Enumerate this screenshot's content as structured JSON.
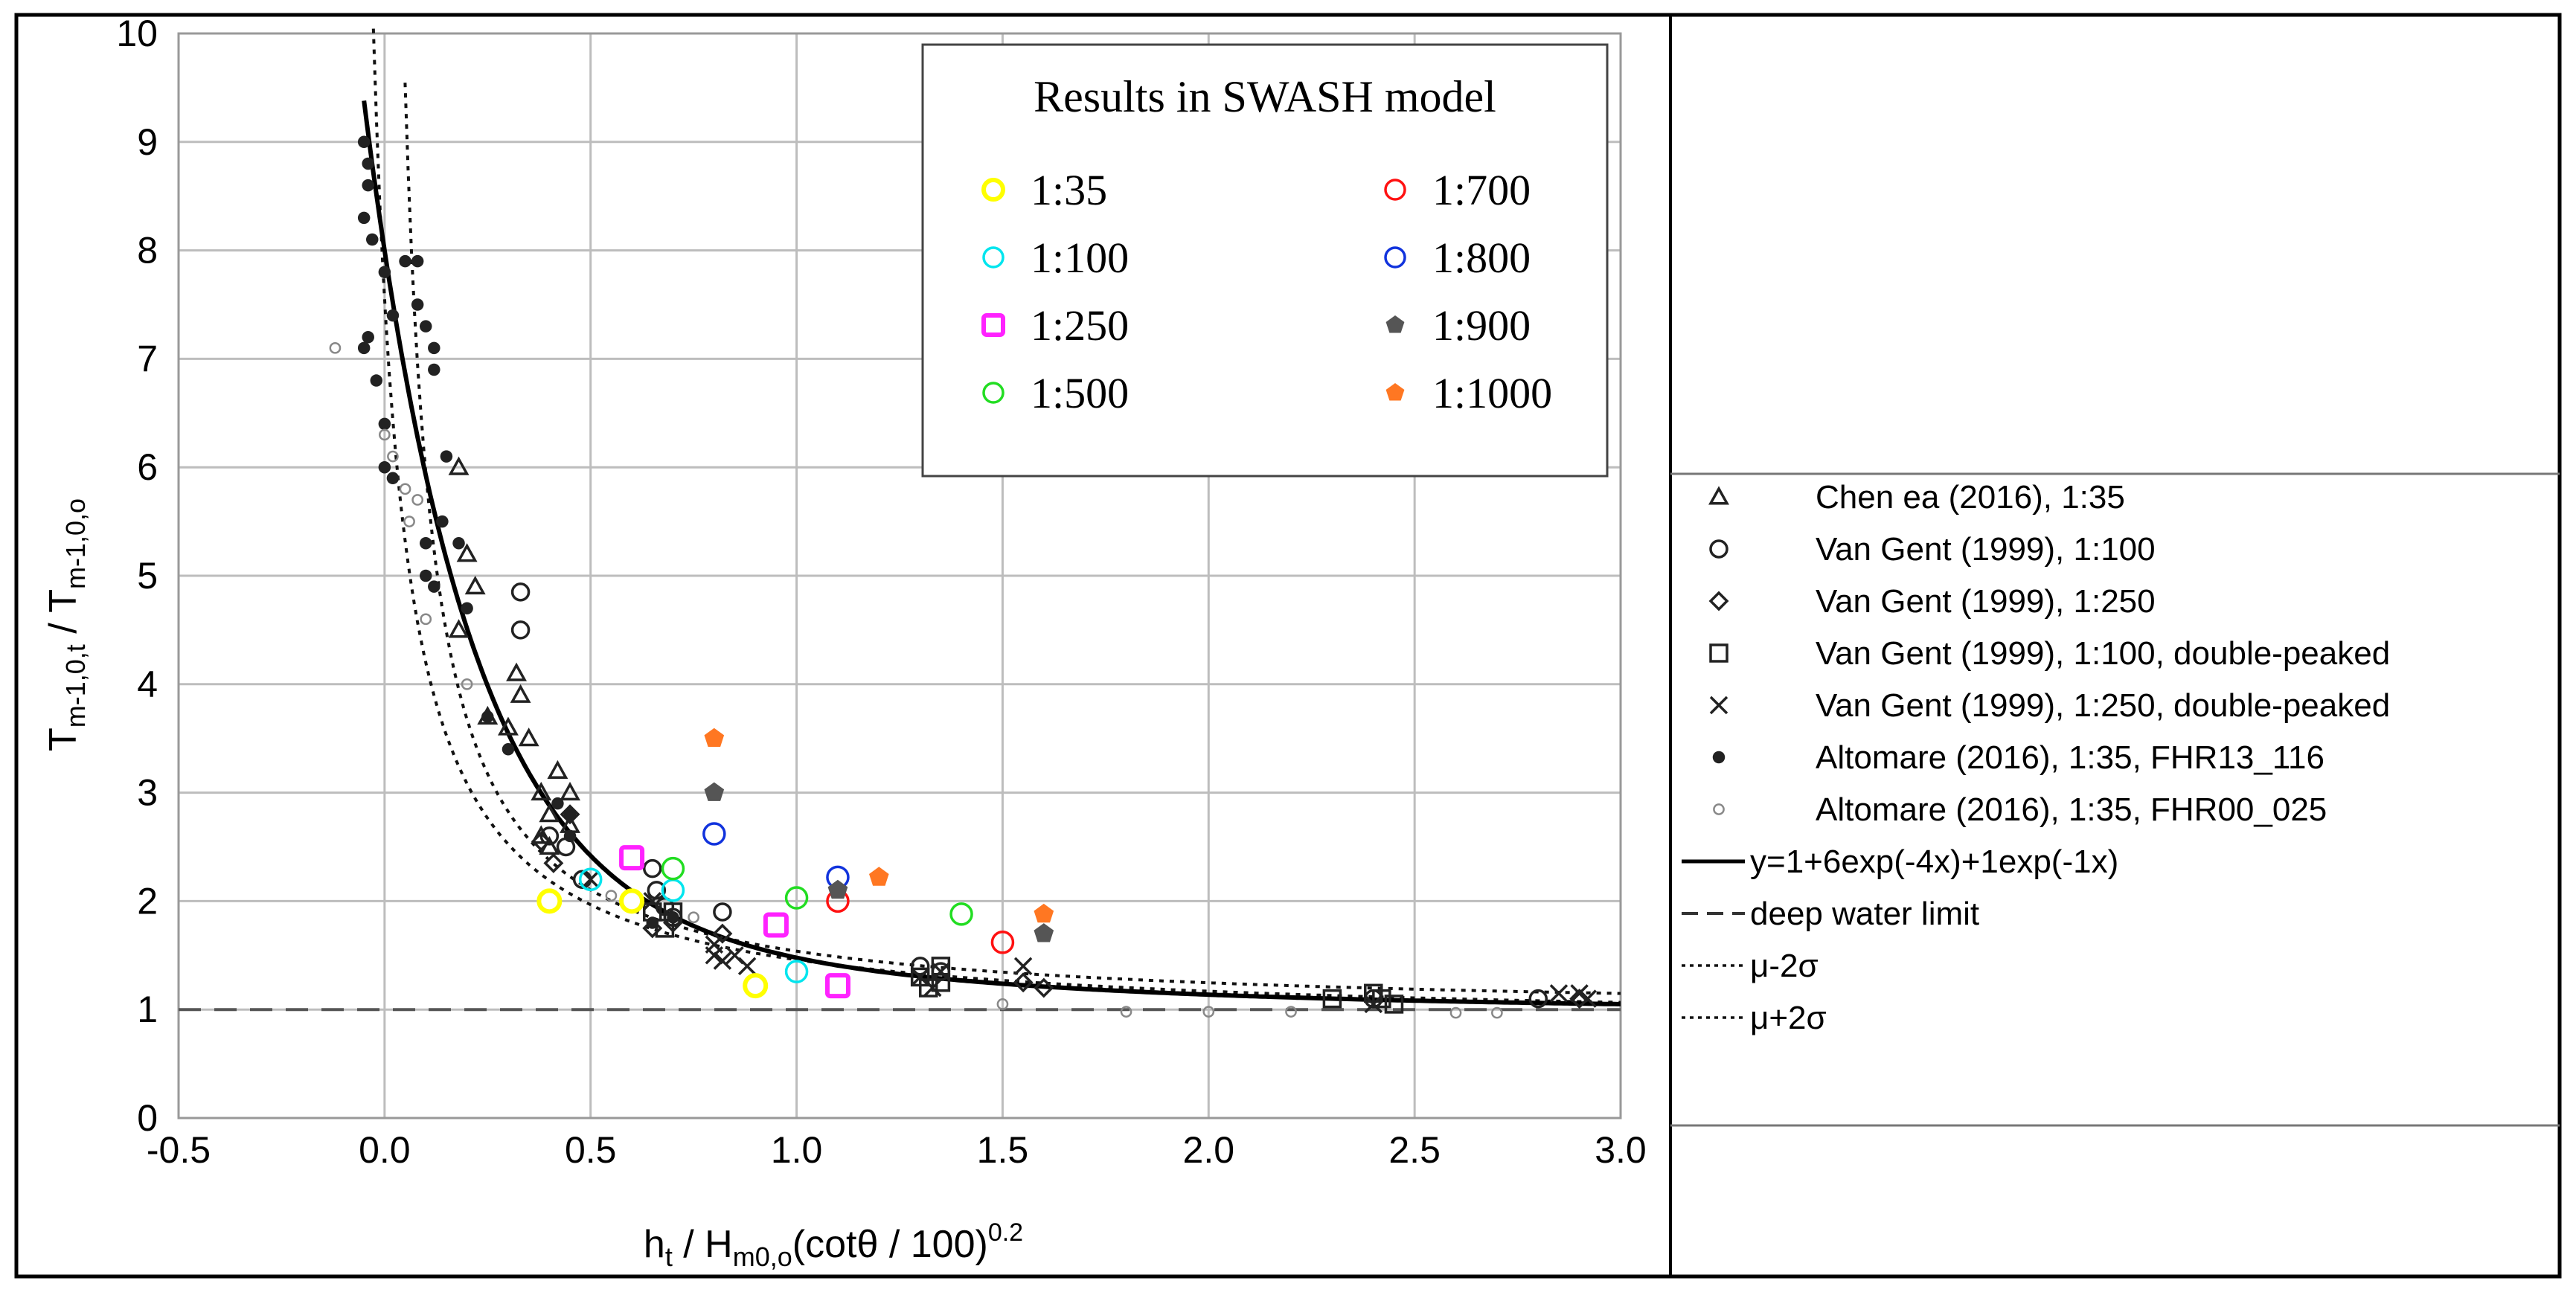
{
  "chart_data": {
    "type": "scatter",
    "xlabel_main": "h",
    "xlabel_sub1": "t",
    "xlabel_mid": " / H",
    "xlabel_sub2": "m0,o",
    "xlabel_tail": "(cotθ / 100)",
    "xlabel_sup": "0.2",
    "ylabel_main": "T",
    "ylabel_sub1": "m-1,0,t",
    "ylabel_mid": " / T",
    "ylabel_sub2": "m-1,0,o",
    "xlim": [
      -0.5,
      3.0
    ],
    "ylim": [
      0,
      10
    ],
    "x_ticks": [
      "-0.5",
      "0.0",
      "0.5",
      "1.0",
      "1.5",
      "2.0",
      "2.5",
      "3.0"
    ],
    "y_ticks": [
      "0",
      "1",
      "2",
      "3",
      "4",
      "5",
      "6",
      "7",
      "8",
      "9",
      "10"
    ],
    "grid": true,
    "swash_legend": {
      "title": "Results in SWASH model",
      "position": "top-center"
    },
    "swash_series": [
      {
        "name": "1:35",
        "color": "#ffff00",
        "marker": "hollow-circle",
        "points": [
          [
            0.4,
            2.0
          ],
          [
            0.6,
            2.0
          ],
          [
            0.9,
            1.22
          ]
        ]
      },
      {
        "name": "1:100",
        "color": "#00e5ee",
        "marker": "circle",
        "points": [
          [
            0.5,
            2.2
          ],
          [
            0.7,
            2.1
          ],
          [
            1.0,
            1.35
          ]
        ]
      },
      {
        "name": "1:250",
        "color": "#ff22ff",
        "marker": "hollow-square",
        "points": [
          [
            0.6,
            2.4
          ],
          [
            0.95,
            1.78
          ],
          [
            1.1,
            1.22
          ]
        ]
      },
      {
        "name": "1:500",
        "color": "#22dd22",
        "marker": "circle",
        "points": [
          [
            0.7,
            2.3
          ],
          [
            1.0,
            2.03
          ],
          [
            1.4,
            1.88
          ]
        ]
      },
      {
        "name": "1:700",
        "color": "#ff1111",
        "marker": "circle",
        "points": [
          [
            1.1,
            2.0
          ],
          [
            1.5,
            1.62
          ]
        ]
      },
      {
        "name": "1:800",
        "color": "#1133dd",
        "marker": "circle",
        "points": [
          [
            0.8,
            2.62
          ],
          [
            1.1,
            2.22
          ]
        ]
      },
      {
        "name": "1:900",
        "color": "#555555",
        "marker": "pentagon",
        "points": [
          [
            0.8,
            3.0
          ],
          [
            1.1,
            2.1
          ],
          [
            1.6,
            1.7
          ]
        ]
      },
      {
        "name": "1:1000",
        "color": "#ff7722",
        "marker": "pentagon",
        "points": [
          [
            0.8,
            3.5
          ],
          [
            1.2,
            2.22
          ],
          [
            1.6,
            1.88
          ]
        ]
      }
    ],
    "legend_entries": [
      {
        "label": "Chen ea (2016), 1:35",
        "marker": "triangle"
      },
      {
        "label": "Van Gent (1999), 1:100",
        "marker": "circle"
      },
      {
        "label": "Van Gent (1999), 1:250",
        "marker": "diamond"
      },
      {
        "label": "Van Gent (1999), 1:100, double-peaked",
        "marker": "square"
      },
      {
        "label": "Van Gent (1999), 1:250, double-peaked",
        "marker": "cross"
      },
      {
        "label": "Altomare (2016), 1:35, FHR13_116",
        "marker": "dot"
      },
      {
        "label": "Altomare (2016), 1:35, FHR00_025",
        "marker": "small-circle"
      },
      {
        "label": "y=1+6exp(-4x)+1exp(-1x)",
        "marker": "solid-line"
      },
      {
        "label": "deep water limit",
        "marker": "dashed-line"
      },
      {
        "label": "μ-2σ",
        "marker": "dotted-line"
      },
      {
        "label": "μ+2σ",
        "marker": "dotted-line"
      }
    ],
    "fit_curve": {
      "formula": "y=1+6exp(-4x)+1exp(-1x)",
      "x_range": [
        -0.05,
        3.0
      ]
    },
    "deep_water_limit": 1,
    "band_lower": {
      "name": "μ-2σ",
      "x_range": [
        -0.05,
        3.0
      ]
    },
    "band_upper": {
      "name": "μ+2σ",
      "x_range": [
        0.02,
        3.0
      ]
    },
    "observations": {
      "chen_triangle": [
        [
          0.18,
          6.0
        ],
        [
          0.2,
          5.2
        ],
        [
          0.22,
          4.9
        ],
        [
          0.18,
          4.5
        ],
        [
          0.25,
          3.7
        ],
        [
          0.3,
          3.6
        ],
        [
          0.32,
          4.1
        ],
        [
          0.33,
          3.9
        ],
        [
          0.35,
          3.5
        ],
        [
          0.38,
          3.0
        ],
        [
          0.4,
          2.8
        ],
        [
          0.42,
          3.2
        ],
        [
          0.45,
          3.0
        ],
        [
          0.45,
          2.7
        ],
        [
          0.38,
          2.6
        ],
        [
          0.4,
          2.5
        ]
      ],
      "vangent_circle": [
        [
          0.33,
          4.85
        ],
        [
          0.33,
          4.5
        ],
        [
          0.4,
          2.6
        ],
        [
          0.44,
          2.5
        ],
        [
          0.48,
          2.2
        ],
        [
          0.65,
          2.3
        ],
        [
          0.66,
          2.1
        ],
        [
          0.68,
          1.95
        ],
        [
          0.7,
          1.85
        ],
        [
          0.82,
          1.9
        ],
        [
          1.3,
          1.4
        ],
        [
          1.35,
          1.35
        ],
        [
          2.4,
          1.1
        ],
        [
          2.8,
          1.1
        ]
      ],
      "vangent_diamond": [
        [
          0.38,
          2.55
        ],
        [
          0.41,
          2.35
        ],
        [
          0.45,
          2.8
        ],
        [
          0.65,
          1.75
        ],
        [
          0.7,
          1.8
        ],
        [
          0.82,
          1.7
        ],
        [
          1.55,
          1.25
        ],
        [
          1.6,
          1.2
        ],
        [
          2.9,
          1.1
        ]
      ],
      "vangent_square": [
        [
          0.65,
          1.9
        ],
        [
          0.68,
          1.75
        ],
        [
          0.7,
          1.9
        ],
        [
          1.3,
          1.3
        ],
        [
          1.32,
          1.2
        ],
        [
          1.35,
          1.4
        ],
        [
          1.35,
          1.25
        ],
        [
          2.3,
          1.1
        ],
        [
          2.4,
          1.15
        ],
        [
          2.42,
          1.1
        ],
        [
          2.45,
          1.05
        ]
      ],
      "vangent_cross": [
        [
          0.5,
          2.2
        ],
        [
          0.65,
          2.0
        ],
        [
          0.8,
          1.6
        ],
        [
          0.8,
          1.5
        ],
        [
          0.82,
          1.45
        ],
        [
          0.85,
          1.5
        ],
        [
          0.88,
          1.4
        ],
        [
          1.3,
          1.3
        ],
        [
          1.33,
          1.2
        ],
        [
          1.35,
          1.35
        ],
        [
          1.55,
          1.4
        ],
        [
          2.4,
          1.05
        ],
        [
          2.85,
          1.15
        ],
        [
          2.9,
          1.15
        ],
        [
          2.92,
          1.1
        ]
      ],
      "altomare_dot": [
        [
          -0.05,
          9.0
        ],
        [
          -0.04,
          8.8
        ],
        [
          -0.04,
          8.6
        ],
        [
          -0.05,
          8.3
        ],
        [
          -0.03,
          8.1
        ],
        [
          -0.04,
          7.2
        ],
        [
          -0.05,
          7.1
        ],
        [
          -0.02,
          6.8
        ],
        [
          0.0,
          7.8
        ],
        [
          0.02,
          7.4
        ],
        [
          0.0,
          6.4
        ],
        [
          0.0,
          6.0
        ],
        [
          0.02,
          5.9
        ],
        [
          0.05,
          7.9
        ],
        [
          0.08,
          7.9
        ],
        [
          0.08,
          7.5
        ],
        [
          0.1,
          7.3
        ],
        [
          0.12,
          6.9
        ],
        [
          0.12,
          7.1
        ],
        [
          0.15,
          6.1
        ],
        [
          0.14,
          5.5
        ],
        [
          0.1,
          5.3
        ],
        [
          0.1,
          5.0
        ],
        [
          0.12,
          4.9
        ],
        [
          0.18,
          5.3
        ],
        [
          0.2,
          4.7
        ],
        [
          0.25,
          3.7
        ],
        [
          0.3,
          3.4
        ],
        [
          0.42,
          2.9
        ],
        [
          0.45,
          2.8
        ],
        [
          0.45,
          2.6
        ],
        [
          0.65,
          1.8
        ],
        [
          0.7,
          1.85
        ]
      ],
      "altomare_small": [
        [
          -0.12,
          7.1
        ],
        [
          0.0,
          6.3
        ],
        [
          0.02,
          6.1
        ],
        [
          0.05,
          5.8
        ],
        [
          0.08,
          5.7
        ],
        [
          0.06,
          5.5
        ],
        [
          0.1,
          4.6
        ],
        [
          0.2,
          4.0
        ],
        [
          0.55,
          2.05
        ],
        [
          0.75,
          1.85
        ],
        [
          1.5,
          1.05
        ],
        [
          1.8,
          0.98
        ],
        [
          2.0,
          0.98
        ],
        [
          2.2,
          0.98
        ],
        [
          2.6,
          0.97
        ],
        [
          2.7,
          0.97
        ]
      ]
    }
  }
}
